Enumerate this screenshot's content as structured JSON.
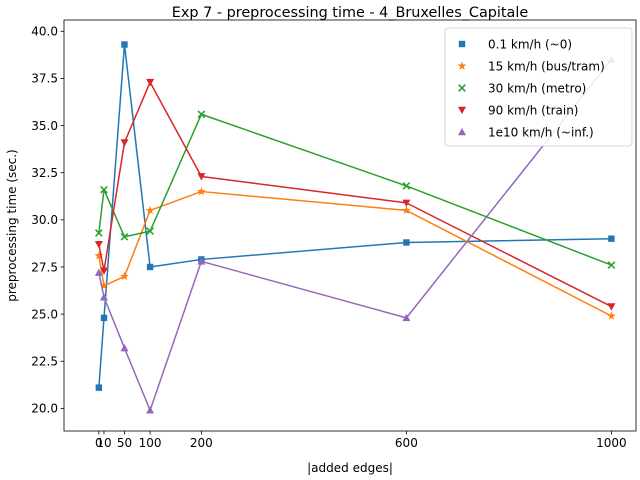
{
  "chart_data": {
    "type": "line",
    "title": "Exp 7 - preprocessing time - 4_Bruxelles_Capitale",
    "xlabel": "|added edges|",
    "ylabel": "preprocessing time (sec.)",
    "xlim": [
      -68,
      1048
    ],
    "ylim": [
      18.8,
      40.6
    ],
    "x_ticks": [
      0,
      10,
      50,
      100,
      200,
      600,
      1000
    ],
    "x_tick_labels": [
      "0",
      "10",
      "50",
      "100",
      "200",
      "600",
      "1000"
    ],
    "y_ticks": [
      20.0,
      22.5,
      25.0,
      27.5,
      30.0,
      32.5,
      35.0,
      37.5,
      40.0
    ],
    "y_tick_labels": [
      "20.0",
      "22.5",
      "25.0",
      "27.5",
      "30.0",
      "32.5",
      "35.0",
      "37.5",
      "40.0"
    ],
    "legend_position": "top-right",
    "x": [
      0,
      10,
      50,
      100,
      200,
      600,
      1000
    ],
    "series": [
      {
        "name": "0.1 km/h (~0)",
        "color": "#1f77b4",
        "marker": "square",
        "values": [
          21.1,
          24.8,
          39.3,
          27.5,
          27.9,
          28.8,
          29.0
        ]
      },
      {
        "name": "15 km/h (bus/tram)",
        "color": "#ff7f0e",
        "marker": "star",
        "values": [
          28.1,
          26.5,
          27.0,
          30.5,
          31.5,
          30.5,
          24.9
        ]
      },
      {
        "name": "30 km/h (metro)",
        "color": "#2ca02c",
        "marker": "x",
        "values": [
          29.3,
          31.6,
          29.1,
          29.4,
          35.6,
          31.8,
          27.6
        ]
      },
      {
        "name": "90 km/h (train)",
        "color": "#d62728",
        "marker": "triangle-down",
        "values": [
          28.7,
          27.3,
          34.1,
          37.3,
          32.3,
          30.9,
          25.4
        ]
      },
      {
        "name": "1e10 km/h (~inf.)",
        "color": "#9467bd",
        "marker": "triangle-up",
        "values": [
          27.2,
          25.9,
          23.2,
          19.9,
          27.8,
          24.8,
          38.5
        ]
      }
    ]
  }
}
